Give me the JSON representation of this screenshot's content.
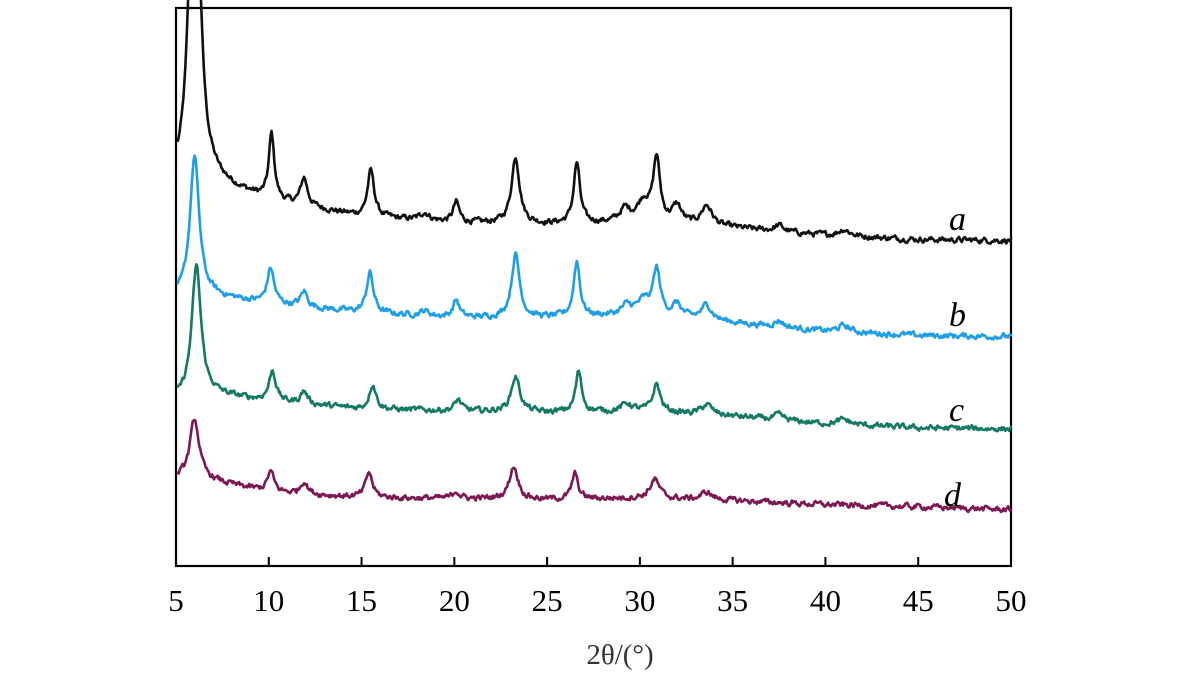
{
  "chart_data": {
    "type": "line",
    "title": "",
    "xlabel": "2θ/(°)",
    "ylabel": "",
    "xlim": [
      5,
      50
    ],
    "ylim": [
      0,
      100
    ],
    "x_ticks": [
      5,
      10,
      15,
      20,
      25,
      30,
      35,
      40,
      45,
      50
    ],
    "x_tick_labels": [
      "5",
      "10",
      "15",
      "20",
      "25",
      "30",
      "35",
      "40",
      "45",
      "50"
    ],
    "y_ticks_shown": false,
    "grid": false,
    "legend": "none (series labelled inline at right)",
    "series": [
      {
        "name": "a",
        "color": "#111111",
        "baseline": [
          [
            5.1,
            70.3
          ],
          [
            7.0,
            70.7
          ],
          [
            10.0,
            67.2
          ],
          [
            15.0,
            64.0
          ],
          [
            20.0,
            62.8
          ],
          [
            25.0,
            62.5
          ],
          [
            30.0,
            62.8
          ],
          [
            35.0,
            61.8
          ],
          [
            40.0,
            60.3
          ],
          [
            45.0,
            59.5
          ],
          [
            50.0,
            59.3
          ]
        ],
        "peaks": [
          [
            6.0,
            86.0,
            0.3
          ],
          [
            10.15,
            13.0,
            0.18
          ],
          [
            11.9,
            5.5,
            0.22
          ],
          [
            15.5,
            9.2,
            0.22
          ],
          [
            18.4,
            1.5,
            0.3
          ],
          [
            20.1,
            4.0,
            0.2
          ],
          [
            23.3,
            13.2,
            0.26
          ],
          [
            26.6,
            12.0,
            0.2
          ],
          [
            29.2,
            2.5,
            0.35
          ],
          [
            30.9,
            12.5,
            0.22
          ],
          [
            30.2,
            4.0,
            0.4
          ],
          [
            32.0,
            3.5,
            0.3
          ],
          [
            33.6,
            4.0,
            0.35
          ],
          [
            37.5,
            1.2,
            0.3
          ],
          [
            41.0,
            1.3,
            0.4
          ]
        ]
      },
      {
        "name": "b",
        "color": "#1f9ee8",
        "baseline": [
          [
            5.1,
            47.8
          ],
          [
            7.0,
            48.2
          ],
          [
            10.0,
            46.8
          ],
          [
            15.0,
            45.0
          ],
          [
            20.0,
            44.0
          ],
          [
            25.0,
            44.0
          ],
          [
            30.0,
            44.5
          ],
          [
            35.0,
            43.0
          ],
          [
            40.0,
            41.3
          ],
          [
            45.0,
            40.5
          ],
          [
            50.0,
            40.3
          ]
        ],
        "peaks": [
          [
            6.0,
            28.0,
            0.3
          ],
          [
            10.1,
            7.0,
            0.22
          ],
          [
            11.9,
            3.0,
            0.22
          ],
          [
            15.45,
            8.0,
            0.22
          ],
          [
            18.4,
            1.0,
            0.3
          ],
          [
            20.1,
            3.5,
            0.2
          ],
          [
            23.3,
            12.5,
            0.26
          ],
          [
            26.6,
            11.0,
            0.2
          ],
          [
            29.3,
            1.8,
            0.35
          ],
          [
            30.9,
            9.0,
            0.24
          ],
          [
            30.2,
            2.5,
            0.4
          ],
          [
            32.0,
            2.5,
            0.3
          ],
          [
            33.6,
            3.0,
            0.35
          ],
          [
            37.5,
            1.2,
            0.3
          ],
          [
            41.0,
            1.3,
            0.4
          ]
        ]
      },
      {
        "name": "c",
        "color": "#147a64",
        "baseline": [
          [
            5.1,
            27.8
          ],
          [
            7.0,
            28.8
          ],
          [
            10.0,
            27.5
          ],
          [
            15.0,
            25.9
          ],
          [
            20.0,
            25.6
          ],
          [
            25.0,
            25.2
          ],
          [
            30.0,
            25.5
          ],
          [
            35.0,
            24.5
          ],
          [
            40.0,
            23.0
          ],
          [
            45.0,
            22.2
          ],
          [
            50.0,
            22.0
          ]
        ],
        "peaks": [
          [
            6.1,
            26.0,
            0.3
          ],
          [
            10.2,
            6.0,
            0.22
          ],
          [
            11.9,
            2.5,
            0.22
          ],
          [
            15.6,
            5.0,
            0.22
          ],
          [
            20.2,
            2.2,
            0.2
          ],
          [
            23.3,
            7.0,
            0.28
          ],
          [
            26.7,
            8.0,
            0.2
          ],
          [
            29.3,
            1.5,
            0.35
          ],
          [
            30.9,
            5.5,
            0.24
          ],
          [
            33.6,
            2.0,
            0.35
          ],
          [
            37.5,
            1.0,
            0.3
          ],
          [
            41.0,
            1.0,
            0.4
          ]
        ]
      },
      {
        "name": "d",
        "color": "#7c1852",
        "baseline": [
          [
            5.1,
            12.3
          ],
          [
            7.0,
            11.6
          ],
          [
            10.0,
            9.5
          ],
          [
            15.0,
            8.4
          ],
          [
            20.0,
            8.2
          ],
          [
            25.0,
            8.0
          ],
          [
            30.0,
            8.3
          ],
          [
            35.0,
            7.8
          ],
          [
            40.0,
            7.0
          ],
          [
            45.0,
            6.6
          ],
          [
            50.0,
            6.0
          ]
        ],
        "peaks": [
          [
            6.0,
            12.0,
            0.3
          ],
          [
            10.1,
            4.0,
            0.22
          ],
          [
            11.9,
            2.5,
            0.22
          ],
          [
            15.4,
            5.0,
            0.22
          ],
          [
            20.1,
            1.5,
            0.2
          ],
          [
            23.2,
            6.5,
            0.28
          ],
          [
            26.5,
            5.0,
            0.2
          ],
          [
            30.8,
            3.8,
            0.3
          ],
          [
            33.6,
            1.5,
            0.35
          ]
        ]
      }
    ],
    "series_labels": [
      "a",
      "b",
      "c",
      "d"
    ]
  }
}
